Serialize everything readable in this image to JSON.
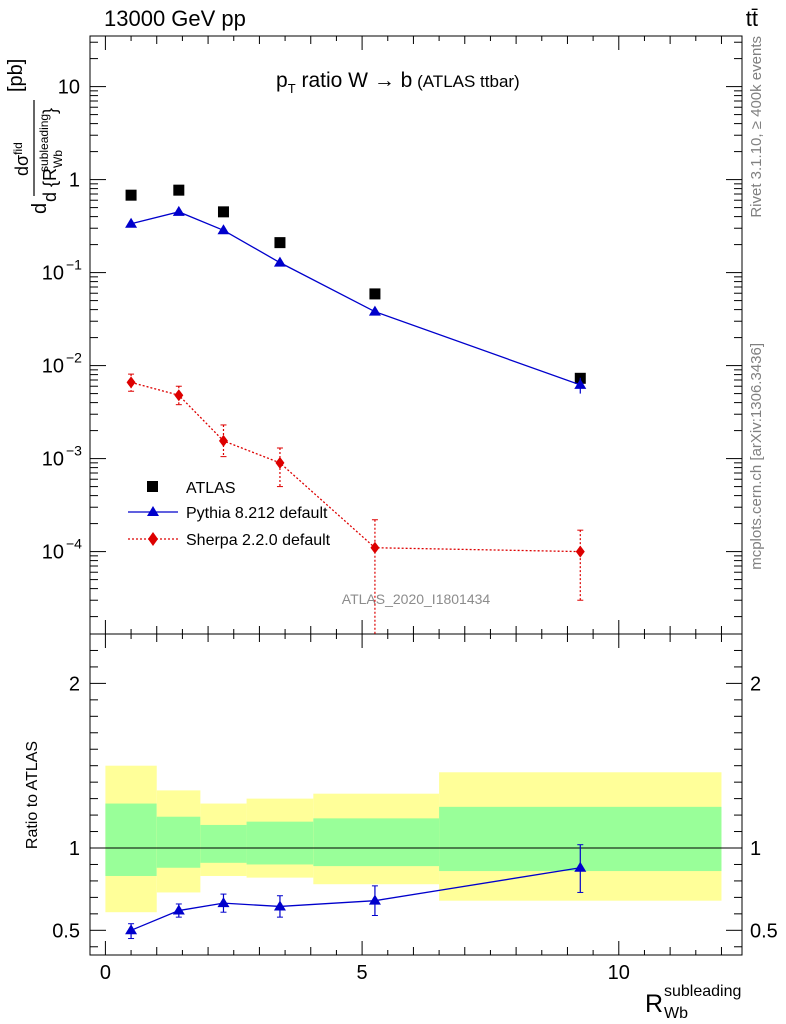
{
  "header": {
    "left": "13000 GeV pp",
    "right": "tt̄"
  },
  "side": {
    "rivet": "Rivet 3.1.10, ≥ 400k events",
    "mcplots": "mcplots.cern.ch [arXiv:1306.3436]"
  },
  "chart_data": {
    "type": "scatter",
    "title_main": "p",
    "title_sub": "T",
    "title_rest": " ratio W → b",
    "title_small": " (ATLAS ttbar)",
    "watermark": "ATLAS_2020_I1801434",
    "ylabel_top": "d σ^fid / d {R_Wb^subleading} [pb]",
    "ylabel_top_parts": {
      "num": "dσ",
      "num_sup": "fid",
      "den": "d {R",
      "den_sub": "Wb",
      "den_sup": "subleading",
      "den_close": "}",
      "unit": "[pb]",
      "d": "d"
    },
    "ylabel_bottom": "Ratio to ATLAS",
    "xlabel_main": "R",
    "xlabel_sub": "Wb",
    "xlabel_sup": "subleading",
    "xlim": [
      -0.3,
      12.4
    ],
    "ylim_top": [
      1.3e-05,
      35
    ],
    "yscale_top": "log",
    "ylim_bottom": [
      0.35,
      2.3
    ],
    "x_ticks": [
      "0",
      "5",
      "10"
    ],
    "y_ticks_top": [
      "10",
      "1",
      "10^-1",
      "10^-2",
      "10^-3",
      "10^-4"
    ],
    "y_ticks_bottom": [
      "0.5",
      "1",
      "2"
    ],
    "legend": [
      "ATLAS",
      "Pythia 8.212 default",
      "Sherpa 2.2.0 default"
    ],
    "bins": [
      [
        0,
        1
      ],
      [
        1,
        1.85
      ],
      [
        1.85,
        2.75
      ],
      [
        2.75,
        4.05
      ],
      [
        4.05,
        6.5
      ],
      [
        6.5,
        12.0
      ]
    ],
    "series": [
      {
        "name": "ATLAS",
        "x": [
          0.5,
          1.43,
          2.3,
          3.4,
          5.25,
          9.25
        ],
        "y": [
          0.68,
          0.77,
          0.45,
          0.21,
          0.059,
          0.0073
        ]
      },
      {
        "name": "Pythia 8.212 default",
        "x": [
          0.5,
          1.43,
          2.3,
          3.4,
          5.25,
          9.25
        ],
        "y": [
          0.335,
          0.45,
          0.285,
          0.128,
          0.038,
          0.0062
        ],
        "yerr": [
          0.01,
          0.01,
          0.01,
          0.005,
          0.002,
          0.0012
        ]
      },
      {
        "name": "Sherpa 2.2.0 default",
        "x": [
          0.5,
          1.43,
          2.3,
          3.4,
          5.25,
          9.25
        ],
        "y": [
          0.0066,
          0.0048,
          0.00155,
          0.0009,
          0.00011,
          0.0001
        ],
        "ylo": [
          0.0053,
          0.0038,
          0.00105,
          0.0005,
          1.2e-05,
          3e-05
        ],
        "yhi": [
          0.0081,
          0.006,
          0.0023,
          0.0013,
          0.00022,
          0.00017
        ]
      }
    ],
    "ratio": {
      "x": [
        0.5,
        1.43,
        2.3,
        3.4,
        5.25,
        9.25
      ],
      "y": [
        0.5,
        0.62,
        0.665,
        0.645,
        0.68,
        0.88
      ],
      "ylo": [
        0.45,
        0.58,
        0.61,
        0.58,
        0.59,
        0.73
      ],
      "yhi": [
        0.54,
        0.66,
        0.72,
        0.71,
        0.77,
        1.02
      ],
      "band_inner": [
        [
          0.83,
          1.27
        ],
        [
          0.88,
          1.19
        ],
        [
          0.91,
          1.14
        ],
        [
          0.9,
          1.16
        ],
        [
          0.89,
          1.18
        ],
        [
          0.86,
          1.25
        ]
      ],
      "band_outer": [
        [
          0.61,
          1.5
        ],
        [
          0.73,
          1.35
        ],
        [
          0.83,
          1.27
        ],
        [
          0.82,
          1.3
        ],
        [
          0.78,
          1.33
        ],
        [
          0.68,
          1.46
        ]
      ]
    }
  }
}
